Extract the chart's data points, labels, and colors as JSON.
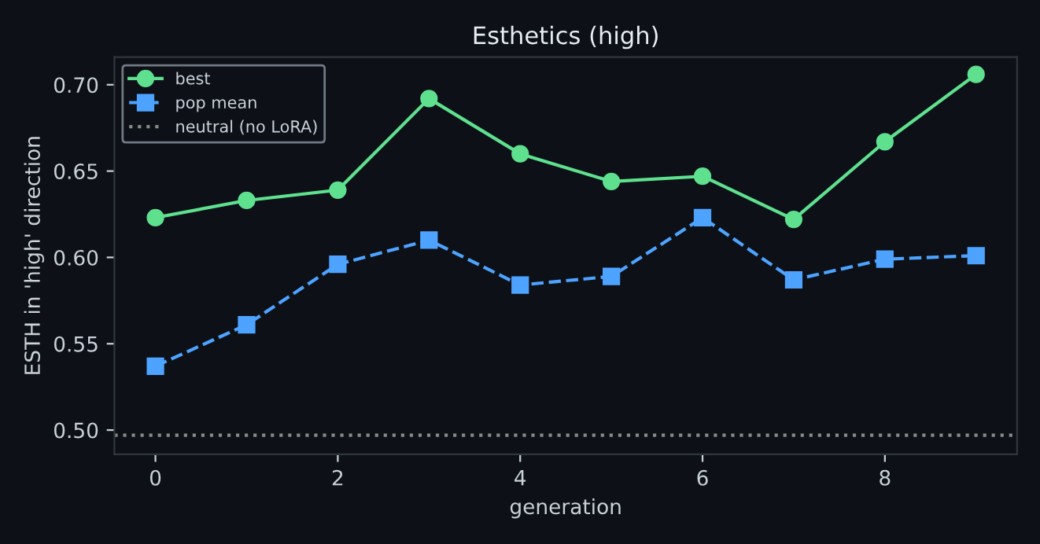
{
  "chart_data": {
    "type": "line",
    "title": "Esthetics (high)",
    "xlabel": "generation",
    "ylabel": "ESTH in 'high' direction",
    "x": [
      0,
      1,
      2,
      3,
      4,
      5,
      6,
      7,
      8,
      9
    ],
    "series": [
      {
        "name": "best",
        "color": "#5ee08f",
        "marker": "circle",
        "line_style": "solid",
        "values": [
          0.623,
          0.633,
          0.639,
          0.692,
          0.66,
          0.644,
          0.647,
          0.622,
          0.667,
          0.706
        ]
      },
      {
        "name": "pop mean",
        "color": "#4da3ff",
        "marker": "square",
        "line_style": "dashed",
        "values": [
          0.537,
          0.561,
          0.596,
          0.61,
          0.584,
          0.589,
          0.623,
          0.587,
          0.599,
          0.601
        ]
      }
    ],
    "ref_lines": [
      {
        "axis": "y",
        "value": 0.497,
        "label": "neutral (no LoRA)",
        "color": "#888888",
        "line_style": "dotted"
      }
    ],
    "xlim": [
      -0.45,
      9.45
    ],
    "ylim": [
      0.486,
      0.716
    ],
    "xticks": [
      0,
      2,
      4,
      6,
      8
    ],
    "yticks": [
      {
        "value": 0.5,
        "label": "0.50"
      },
      {
        "value": 0.55,
        "label": "0.55"
      },
      {
        "value": 0.6,
        "label": "0.60"
      },
      {
        "value": 0.65,
        "label": "0.65"
      },
      {
        "value": 0.7,
        "label": "0.70"
      }
    ],
    "grid": false,
    "legend": "top left"
  }
}
